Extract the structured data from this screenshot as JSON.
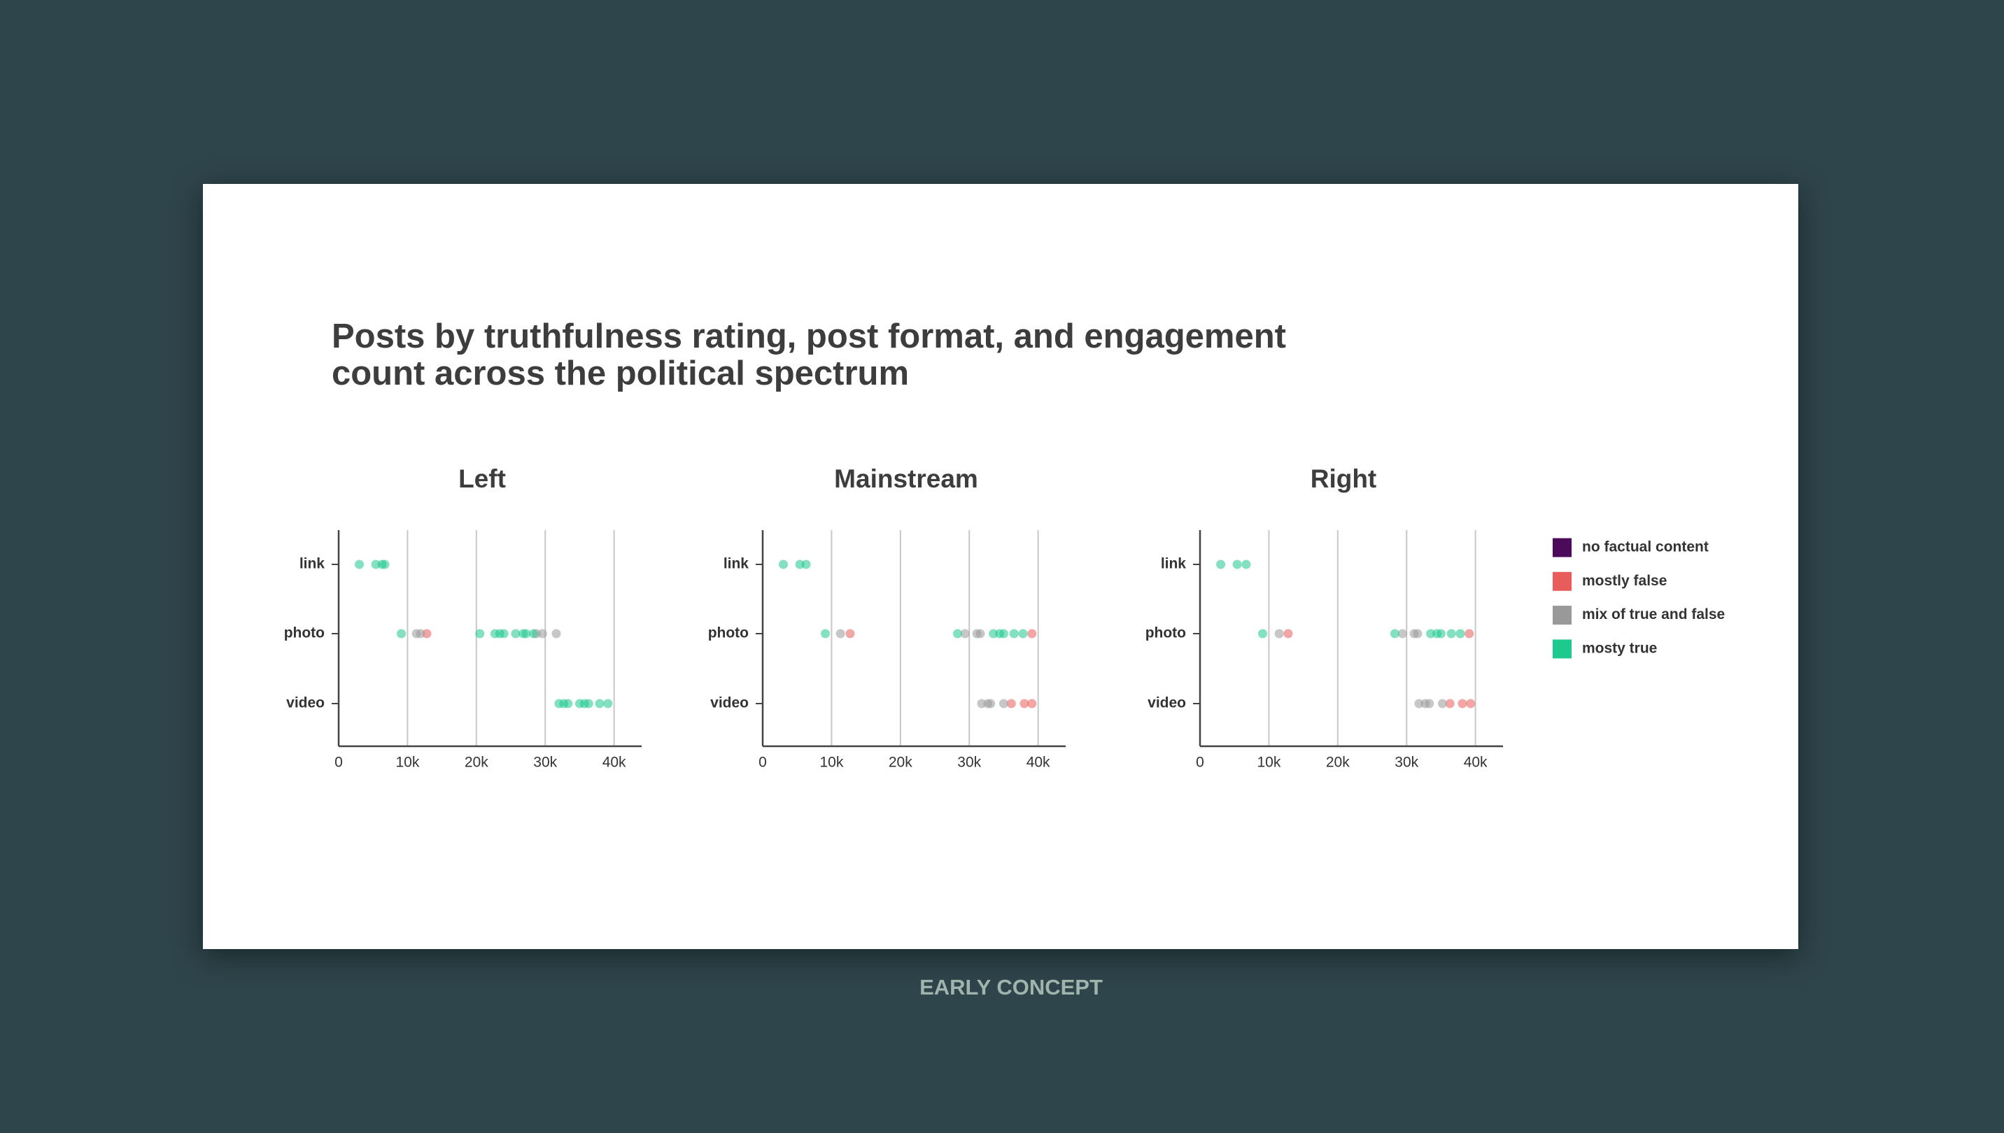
{
  "title": "Posts by truthfulness rating, post format, and engagement count across the political spectrum",
  "footer": "EARLY CONCEPT",
  "chart_data": [
    {
      "type": "strip",
      "title": "Left",
      "categories": [
        "link",
        "photo",
        "video"
      ],
      "xlim": [
        0,
        44000
      ],
      "xticks": [
        0,
        {
          "value": 10000,
          "label": "10k"
        },
        {
          "value": 20000,
          "label": "20k"
        },
        {
          "value": 30000,
          "label": "30k"
        },
        {
          "value": 40000,
          "label": "40k"
        }
      ],
      "grid": true,
      "series": [
        {
          "name": "no factual content",
          "color": "#4b0a5a",
          "categories": [],
          "values": []
        },
        {
          "name": "mostly false",
          "color": "#e85c5c",
          "categories": [
            "photo"
          ],
          "values": [
            12800
          ]
        },
        {
          "name": "mix of true and false",
          "color": "#999999",
          "categories": [
            "photo",
            "photo",
            "photo",
            "photo",
            "photo"
          ],
          "values": [
            11300,
            11900,
            28700,
            29600,
            31600
          ]
        },
        {
          "name": "mosty true",
          "color": "#1ec98e",
          "categories": [
            "link",
            "link",
            "link",
            "link",
            "photo",
            "photo",
            "photo",
            "photo",
            "photo",
            "photo",
            "photo",
            "photo",
            "photo",
            "video",
            "video",
            "video",
            "video",
            "video",
            "video",
            "video",
            "video"
          ],
          "values": [
            3000,
            5400,
            6300,
            6700,
            9100,
            20500,
            22700,
            23400,
            24000,
            25700,
            26800,
            27200,
            28300,
            32000,
            32700,
            33300,
            35000,
            35700,
            36300,
            37900,
            39100
          ]
        }
      ]
    },
    {
      "type": "strip",
      "title": "Mainstream",
      "categories": [
        "link",
        "photo",
        "video"
      ],
      "xlim": [
        0,
        44000
      ],
      "xticks": [
        0,
        {
          "value": 10000,
          "label": "10k"
        },
        {
          "value": 20000,
          "label": "20k"
        },
        {
          "value": 30000,
          "label": "30k"
        },
        {
          "value": 40000,
          "label": "40k"
        }
      ],
      "grid": true,
      "series": [
        {
          "name": "no factual content",
          "color": "#4b0a5a",
          "categories": [],
          "values": []
        },
        {
          "name": "mostly false",
          "color": "#e85c5c",
          "categories": [
            "photo",
            "photo",
            "video",
            "video",
            "video"
          ],
          "values": [
            12700,
            39100,
            36100,
            38000,
            39100
          ]
        },
        {
          "name": "mix of true and false",
          "color": "#999999",
          "categories": [
            "photo",
            "photo",
            "photo",
            "photo",
            "video",
            "video",
            "video",
            "video"
          ],
          "values": [
            11300,
            29400,
            31100,
            31600,
            31800,
            32700,
            33100,
            35000
          ]
        },
        {
          "name": "mosty true",
          "color": "#1ec98e",
          "categories": [
            "link",
            "link",
            "link",
            "photo",
            "photo",
            "photo",
            "photo",
            "photo",
            "photo",
            "photo"
          ],
          "values": [
            3000,
            5400,
            6300,
            9100,
            28300,
            33500,
            34400,
            35000,
            36500,
            37800
          ]
        }
      ]
    },
    {
      "type": "strip",
      "title": "Right",
      "categories": [
        "link",
        "photo",
        "video"
      ],
      "xlim": [
        0,
        44000
      ],
      "xticks": [
        0,
        {
          "value": 10000,
          "label": "10k"
        },
        {
          "value": 20000,
          "label": "20k"
        },
        {
          "value": 30000,
          "label": "30k"
        },
        {
          "value": 40000,
          "label": "40k"
        }
      ],
      "grid": true,
      "series": [
        {
          "name": "no factual content",
          "color": "#4b0a5a",
          "categories": [],
          "values": []
        },
        {
          "name": "mostly false",
          "color": "#e85c5c",
          "categories": [
            "photo",
            "photo",
            "video",
            "video",
            "video"
          ],
          "values": [
            12800,
            39100,
            36300,
            38100,
            39300
          ]
        },
        {
          "name": "mix of true and false",
          "color": "#999999",
          "categories": [
            "photo",
            "photo",
            "photo",
            "photo",
            "video",
            "video",
            "video",
            "video"
          ],
          "values": [
            11500,
            29400,
            31100,
            31600,
            31800,
            32700,
            33300,
            35200
          ]
        },
        {
          "name": "mosty true",
          "color": "#1ec98e",
          "categories": [
            "link",
            "link",
            "link",
            "photo",
            "photo",
            "photo",
            "photo",
            "photo",
            "photo",
            "photo"
          ],
          "values": [
            3000,
            5400,
            6700,
            9100,
            28300,
            33500,
            34400,
            35000,
            36500,
            37800
          ]
        }
      ]
    }
  ]
}
